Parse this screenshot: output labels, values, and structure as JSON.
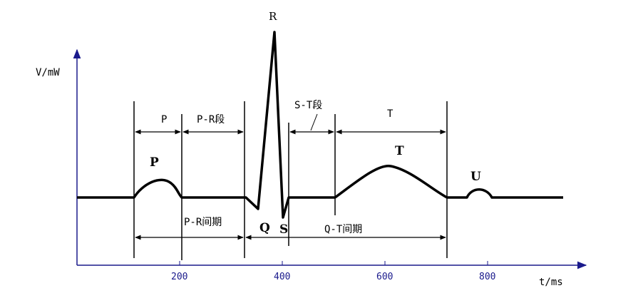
{
  "axes": {
    "y_label": "V/mW",
    "x_label": "t/ms",
    "x_ticks": [
      "200",
      "400",
      "600",
      "800"
    ]
  },
  "waves": {
    "p": "P",
    "r": "R",
    "q": "Q",
    "s": "S",
    "t": "T",
    "u": "U"
  },
  "segments": {
    "p": "P",
    "pr_segment": "P-R段",
    "st_segment": "S-T段",
    "t": "T",
    "pr_interval": "P-R间期",
    "qt_interval": "Q-T间期"
  }
}
